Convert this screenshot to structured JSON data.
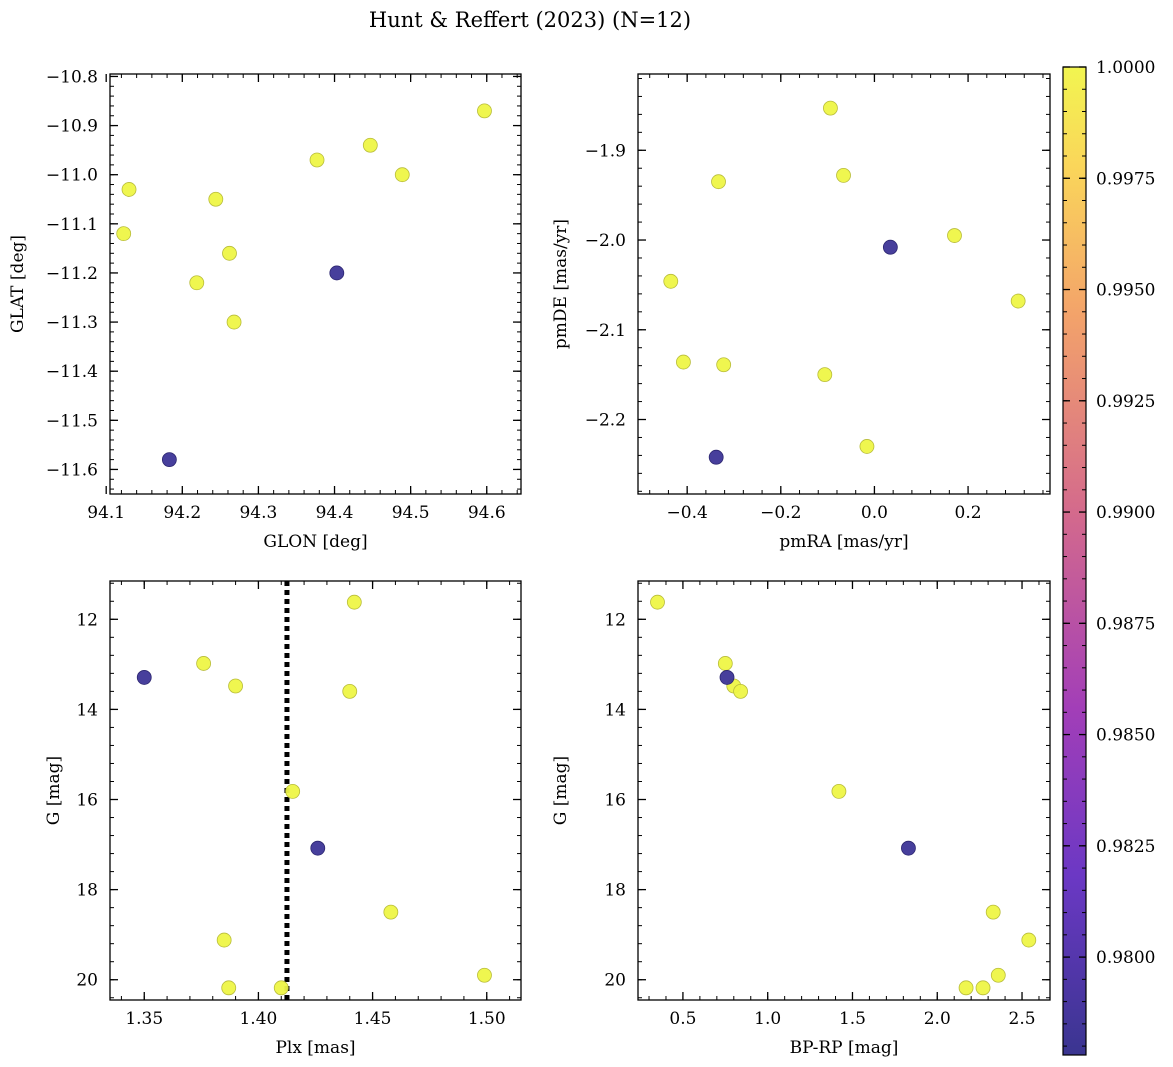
{
  "chart_data": {
    "title": "Hunt & Reffert (2023) (N=12)",
    "colorbar": {
      "colormap": "plasma",
      "range": [
        0.9778,
        1.0
      ],
      "ticks": [
        0.98,
        0.9825,
        0.985,
        0.9875,
        0.99,
        0.9925,
        0.995,
        0.9975,
        1.0
      ],
      "tick_labels": [
        "0.9800",
        "0.9825",
        "0.9850",
        "0.9875",
        "0.9900",
        "0.9925",
        "0.9950",
        "0.9975",
        "1.0000"
      ]
    },
    "panels": [
      {
        "type": "scatter",
        "xlabel": "GLON [deg]",
        "ylabel": "GLAT [deg]",
        "xlim": [
          94.105,
          94.645
        ],
        "ylim": [
          -11.65,
          -10.795
        ],
        "y_inverted": false,
        "xticks": [
          94.1,
          94.2,
          94.3,
          94.4,
          94.5,
          94.6
        ],
        "xtick_labels": [
          "94.1",
          "94.2",
          "94.3",
          "94.4",
          "94.5",
          "94.6"
        ],
        "yticks": [
          -11.6,
          -11.5,
          -11.4,
          -11.3,
          -11.2,
          -11.1,
          -11.0,
          -10.9,
          -10.8
        ],
        "ytick_labels": [
          "−11.6",
          "−11.5",
          "−11.4",
          "−11.3",
          "−11.2",
          "−11.1",
          "−11.0",
          "−10.9",
          "−10.8"
        ],
        "points": [
          {
            "x": 94.597,
            "y": -10.87,
            "c": 1.0
          },
          {
            "x": 94.447,
            "y": -10.94,
            "c": 1.0
          },
          {
            "x": 94.377,
            "y": -10.97,
            "c": 1.0
          },
          {
            "x": 94.489,
            "y": -11.0,
            "c": 1.0
          },
          {
            "x": 94.13,
            "y": -11.03,
            "c": 1.0
          },
          {
            "x": 94.244,
            "y": -11.05,
            "c": 1.0
          },
          {
            "x": 94.123,
            "y": -11.12,
            "c": 1.0
          },
          {
            "x": 94.262,
            "y": -11.16,
            "c": 1.0
          },
          {
            "x": 94.403,
            "y": -11.2,
            "c": 0.978
          },
          {
            "x": 94.219,
            "y": -11.22,
            "c": 1.0
          },
          {
            "x": 94.268,
            "y": -11.3,
            "c": 1.0
          },
          {
            "x": 94.183,
            "y": -11.58,
            "c": 0.978
          }
        ]
      },
      {
        "type": "scatter",
        "xlabel": "pmRA [mas/yr]",
        "ylabel": "pmDE [mas/yr]",
        "xlim": [
          -0.505,
          0.375
        ],
        "ylim": [
          -2.283,
          -1.815
        ],
        "y_inverted": false,
        "xticks": [
          -0.4,
          -0.2,
          0.0,
          0.2
        ],
        "xtick_labels": [
          "−0.4",
          "−0.2",
          "0.0",
          "0.2"
        ],
        "yticks": [
          -2.2,
          -2.1,
          -2.0,
          -1.9
        ],
        "ytick_labels": [
          "−2.2",
          "−2.1",
          "−2.0",
          "−1.9"
        ],
        "points": [
          {
            "x": -0.094,
            "y": -1.853,
            "c": 1.0
          },
          {
            "x": -0.333,
            "y": -1.935,
            "c": 1.0
          },
          {
            "x": -0.066,
            "y": -1.928,
            "c": 1.0
          },
          {
            "x": 0.171,
            "y": -1.995,
            "c": 1.0
          },
          {
            "x": 0.034,
            "y": -2.008,
            "c": 0.978
          },
          {
            "x": -0.435,
            "y": -2.046,
            "c": 1.0
          },
          {
            "x": 0.307,
            "y": -2.068,
            "c": 1.0
          },
          {
            "x": -0.408,
            "y": -2.136,
            "c": 1.0
          },
          {
            "x": -0.322,
            "y": -2.139,
            "c": 1.0
          },
          {
            "x": -0.106,
            "y": -2.15,
            "c": 1.0
          },
          {
            "x": -0.016,
            "y": -2.23,
            "c": 1.0
          },
          {
            "x": -0.338,
            "y": -2.242,
            "c": 0.978
          }
        ]
      },
      {
        "type": "scatter",
        "xlabel": "Plx [mas]",
        "ylabel": "G [mag]",
        "xlim": [
          1.335,
          1.515
        ],
        "ylim": [
          20.45,
          11.15
        ],
        "y_inverted": true,
        "xticks": [
          1.35,
          1.4,
          1.45,
          1.5
        ],
        "xtick_labels": [
          "1.35",
          "1.40",
          "1.45",
          "1.50"
        ],
        "yticks": [
          12,
          14,
          16,
          18,
          20
        ],
        "ytick_labels": [
          "12",
          "14",
          "16",
          "18",
          "20"
        ],
        "vline": {
          "x": 1.4125,
          "style": "dotted"
        },
        "points": [
          {
            "x": 1.442,
            "y": 11.62,
            "c": 1.0
          },
          {
            "x": 1.376,
            "y": 12.98,
            "c": 1.0
          },
          {
            "x": 1.35,
            "y": 13.29,
            "c": 0.978
          },
          {
            "x": 1.39,
            "y": 13.48,
            "c": 1.0
          },
          {
            "x": 1.44,
            "y": 13.6,
            "c": 1.0
          },
          {
            "x": 1.415,
            "y": 15.82,
            "c": 1.0
          },
          {
            "x": 1.426,
            "y": 17.08,
            "c": 0.978
          },
          {
            "x": 1.458,
            "y": 18.5,
            "c": 1.0
          },
          {
            "x": 1.385,
            "y": 19.12,
            "c": 1.0
          },
          {
            "x": 1.499,
            "y": 19.9,
            "c": 1.0
          },
          {
            "x": 1.387,
            "y": 20.18,
            "c": 1.0
          },
          {
            "x": 1.41,
            "y": 20.18,
            "c": 1.0
          }
        ]
      },
      {
        "type": "scatter",
        "xlabel": "BP-RP [mag]",
        "ylabel": "G [mag]",
        "xlim": [
          0.235,
          2.665
        ],
        "ylim": [
          20.45,
          11.15
        ],
        "y_inverted": true,
        "xticks": [
          0.5,
          1.0,
          1.5,
          2.0,
          2.5
        ],
        "xtick_labels": [
          "0.5",
          "1.0",
          "1.5",
          "2.0",
          "2.5"
        ],
        "yticks": [
          12,
          14,
          16,
          18,
          20
        ],
        "ytick_labels": [
          "12",
          "14",
          "16",
          "18",
          "20"
        ],
        "points": [
          {
            "x": 0.35,
            "y": 11.62,
            "c": 1.0
          },
          {
            "x": 0.75,
            "y": 12.98,
            "c": 1.0
          },
          {
            "x": 0.76,
            "y": 13.29,
            "c": 0.978
          },
          {
            "x": 0.8,
            "y": 13.48,
            "c": 1.0
          },
          {
            "x": 0.84,
            "y": 13.6,
            "c": 1.0
          },
          {
            "x": 1.42,
            "y": 15.82,
            "c": 1.0
          },
          {
            "x": 1.83,
            "y": 17.08,
            "c": 0.978
          },
          {
            "x": 2.33,
            "y": 18.5,
            "c": 1.0
          },
          {
            "x": 2.54,
            "y": 19.12,
            "c": 1.0
          },
          {
            "x": 2.36,
            "y": 19.9,
            "c": 1.0
          },
          {
            "x": 2.17,
            "y": 20.18,
            "c": 1.0
          },
          {
            "x": 2.27,
            "y": 20.18,
            "c": 1.0
          }
        ]
      }
    ]
  }
}
